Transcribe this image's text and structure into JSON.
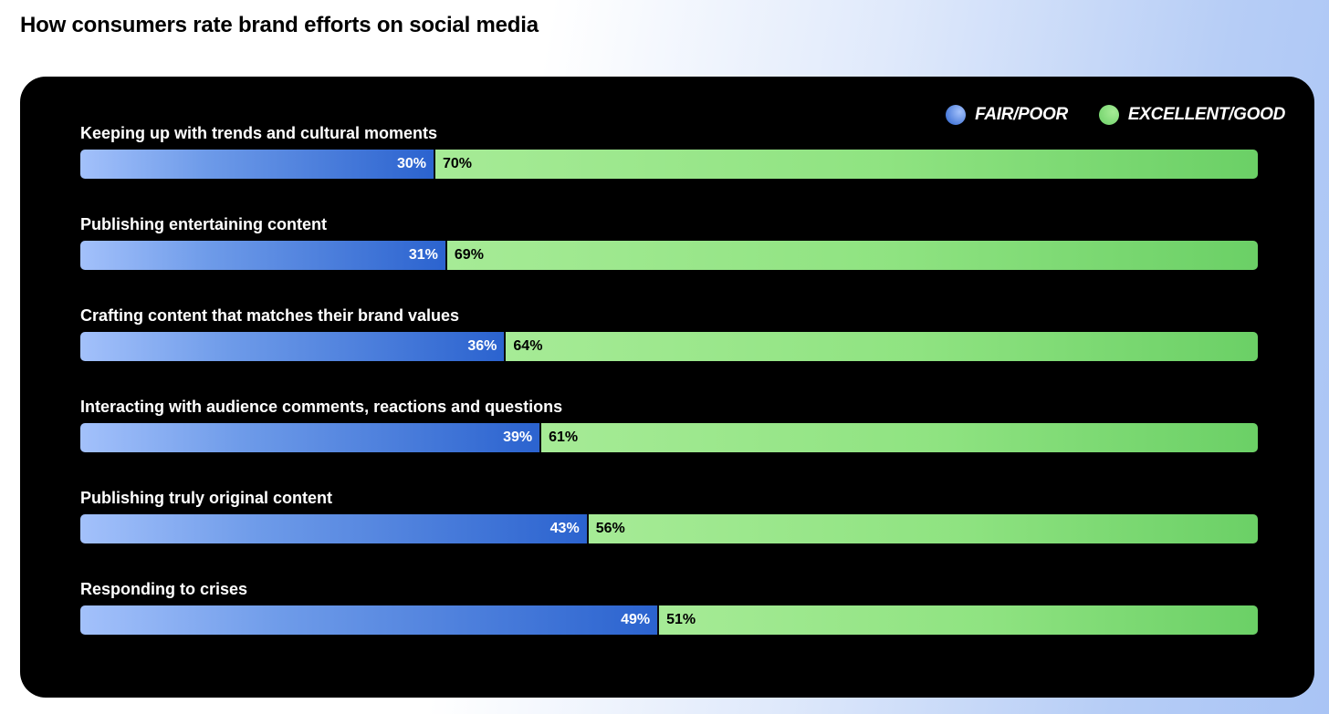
{
  "chart_data": {
    "type": "bar",
    "orientation": "horizontal",
    "stacked": true,
    "title": "How consumers rate brand efforts on social media",
    "categories": [
      "Keeping up with trends and cultural moments",
      "Publishing entertaining content",
      "Crafting content that matches their brand values",
      "Interacting with audience comments, reactions and questions",
      "Publishing truly original content",
      "Responding to crises"
    ],
    "series": [
      {
        "name": "FAIR/POOR",
        "color": "#2b63cf",
        "values": [
          30,
          31,
          36,
          39,
          43,
          49
        ],
        "labels": [
          "30%",
          "31%",
          "36%",
          "39%",
          "43%",
          "49%"
        ]
      },
      {
        "name": "EXCELLENT/GOOD",
        "color": "#8fe381",
        "values": [
          70,
          69,
          64,
          61,
          56,
          51
        ],
        "labels": [
          "70%",
          "69%",
          "64%",
          "61%",
          "56%",
          "51%"
        ]
      }
    ],
    "legend_position": "top-right",
    "xlabel": "",
    "ylabel": "",
    "xlim": [
      0,
      100
    ],
    "grid": false
  },
  "colors": {
    "panel_background": "#000000",
    "fair_poor_light": "#a3c1fb",
    "fair_poor_dark": "#2b63cf",
    "excellent_good_light": "#a6eb96",
    "excellent_good_dark": "#6bd066"
  }
}
